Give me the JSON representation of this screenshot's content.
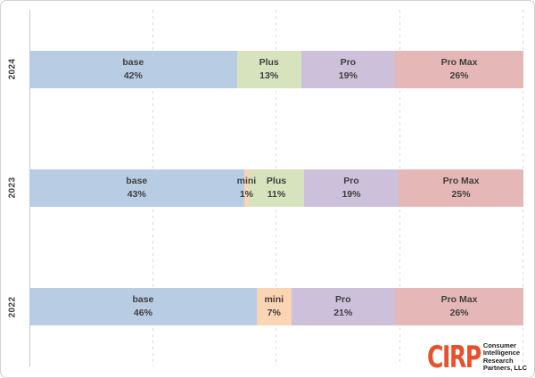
{
  "chart_data": {
    "type": "bar",
    "orientation": "horizontal-stacked-100",
    "title": "",
    "xlabel": "",
    "ylabel": "",
    "xlim": [
      0,
      100
    ],
    "gridline_ticks": [
      25,
      50,
      75,
      100
    ],
    "grid": "dashed-vertical",
    "legend": "none",
    "categories": [
      "2024",
      "2023",
      "2022"
    ],
    "series_colors": {
      "base": "#b8cce4",
      "mini": "#fbd4b4",
      "Plus": "#d6e3bc",
      "Pro": "#ccc0da",
      "Pro Max": "#e5b8b7"
    },
    "rows": [
      {
        "year": "2024",
        "segments": [
          {
            "label": "base",
            "value": 42
          },
          {
            "label": "Plus",
            "value": 13
          },
          {
            "label": "Pro",
            "value": 19
          },
          {
            "label": "Pro Max",
            "value": 26
          }
        ]
      },
      {
        "year": "2023",
        "segments": [
          {
            "label": "base",
            "value": 43
          },
          {
            "label": "mini",
            "value": 1
          },
          {
            "label": "Plus",
            "value": 11
          },
          {
            "label": "Pro",
            "value": 19
          },
          {
            "label": "Pro Max",
            "value": 25
          }
        ]
      },
      {
        "year": "2022",
        "segments": [
          {
            "label": "base",
            "value": 46
          },
          {
            "label": "mini",
            "value": 7
          },
          {
            "label": "Pro",
            "value": 21
          },
          {
            "label": "Pro Max",
            "value": 26
          }
        ]
      }
    ],
    "value_suffix": "%",
    "label_color": "#3f3f3f"
  },
  "logo": {
    "acronym": "CIRP",
    "lines": [
      "Consumer",
      "Intelligence",
      "Research",
      "Partners, LLC"
    ],
    "color": "#e8512d",
    "text_color": "#1a1a1a"
  }
}
